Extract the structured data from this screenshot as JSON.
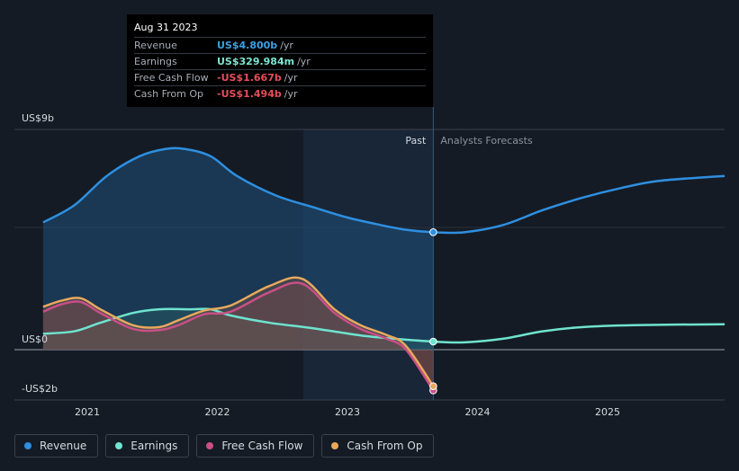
{
  "tooltip": {
    "date": "Aug 31 2023",
    "rows": [
      {
        "label": "Revenue",
        "value": "US$4.800b",
        "unit": "/yr",
        "color": "#3ba0e6"
      },
      {
        "label": "Earnings",
        "value": "US$329.984m",
        "unit": "/yr",
        "color": "#7de6d0"
      },
      {
        "label": "Free Cash Flow",
        "value": "-US$1.667b",
        "unit": "/yr",
        "color": "#e84d5b"
      },
      {
        "label": "Cash From Op",
        "value": "-US$1.494b",
        "unit": "/yr",
        "color": "#e84d5b"
      }
    ]
  },
  "legend": [
    {
      "label": "Revenue",
      "color": "#2e8fe0"
    },
    {
      "label": "Earnings",
      "color": "#6fe3cf"
    },
    {
      "label": "Free Cash Flow",
      "color": "#c94f86"
    },
    {
      "label": "Cash From Op",
      "color": "#e8a85c"
    }
  ],
  "chart_data": {
    "type": "line",
    "title": "",
    "xlabel": "",
    "ylabel": "",
    "ylim": [
      -2.4,
      9
    ],
    "y_tick_labels": [
      "US$9b",
      "US$0",
      "-US$2b"
    ],
    "x_tick_labels": [
      "2021",
      "2022",
      "2023",
      "2024",
      "2025"
    ],
    "divider_labels": {
      "past": "Past",
      "future": "Analysts Forecasts"
    },
    "divider_x": 2023.66,
    "series": [
      {
        "name": "Revenue",
        "color": "#2e8fe0",
        "x": [
          2020.66,
          2020.9,
          2021.15,
          2021.4,
          2021.6,
          2021.75,
          2021.95,
          2022.15,
          2022.45,
          2022.75,
          2023.0,
          2023.25,
          2023.45,
          2023.66,
          2023.9,
          2024.2,
          2024.5,
          2024.8,
          2025.1,
          2025.4,
          2025.9
        ],
        "y": [
          5.2,
          5.9,
          7.1,
          7.9,
          8.2,
          8.2,
          7.9,
          7.1,
          6.3,
          5.8,
          5.4,
          5.1,
          4.9,
          4.8,
          4.8,
          5.1,
          5.7,
          6.2,
          6.6,
          6.9,
          7.1
        ]
      },
      {
        "name": "Earnings",
        "color": "#6fe3cf",
        "x": [
          2020.66,
          2020.9,
          2021.1,
          2021.35,
          2021.55,
          2021.8,
          2021.95,
          2022.1,
          2022.4,
          2022.7,
          2022.95,
          2023.15,
          2023.35,
          2023.66,
          2023.9,
          2024.2,
          2024.5,
          2024.8,
          2025.2,
          2025.9
        ],
        "y": [
          0.65,
          0.75,
          1.1,
          1.5,
          1.65,
          1.65,
          1.65,
          1.4,
          1.1,
          0.9,
          0.7,
          0.55,
          0.45,
          0.33,
          0.3,
          0.45,
          0.75,
          0.92,
          1.0,
          1.04
        ]
      },
      {
        "name": "Free Cash Flow",
        "color": "#c94f86",
        "x": [
          2020.66,
          2020.8,
          2020.95,
          2021.1,
          2021.35,
          2021.55,
          2021.7,
          2021.9,
          2022.1,
          2022.4,
          2022.65,
          2022.9,
          2023.1,
          2023.3,
          2023.45,
          2023.66
        ],
        "y": [
          1.55,
          1.85,
          1.95,
          1.5,
          0.85,
          0.8,
          1.0,
          1.45,
          1.55,
          2.35,
          2.7,
          1.5,
          0.85,
          0.45,
          0.0,
          -1.667
        ]
      },
      {
        "name": "Cash From Op",
        "color": "#e8a85c",
        "x": [
          2020.66,
          2020.8,
          2020.95,
          2021.1,
          2021.35,
          2021.55,
          2021.7,
          2021.9,
          2022.1,
          2022.4,
          2022.65,
          2022.9,
          2023.1,
          2023.3,
          2023.45,
          2023.66
        ],
        "y": [
          1.75,
          2.0,
          2.1,
          1.65,
          1.0,
          0.92,
          1.2,
          1.6,
          1.8,
          2.6,
          2.9,
          1.65,
          1.0,
          0.6,
          0.15,
          -1.494
        ]
      }
    ]
  }
}
